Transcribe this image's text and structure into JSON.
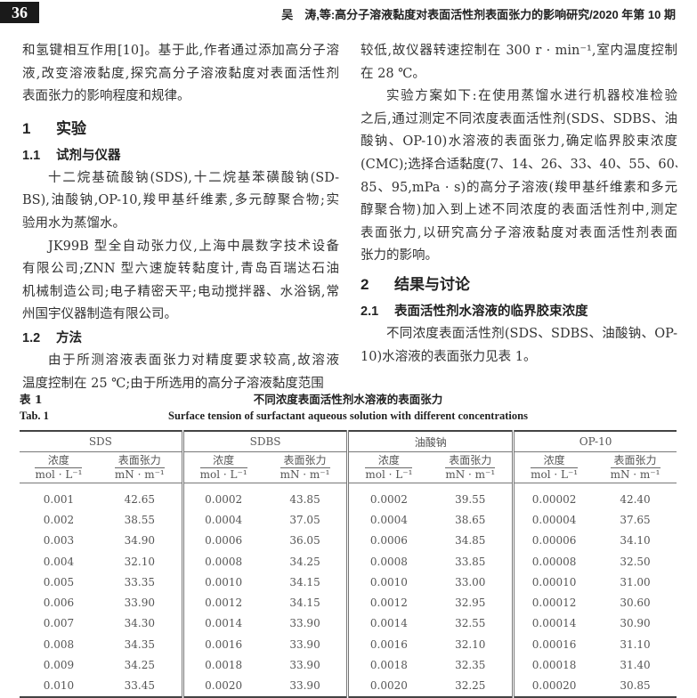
{
  "header": {
    "page_number": "36",
    "running_title": "吴　涛,等:高分子溶液黏度对表面活性剂表面张力的影响研究/2020 年第 10 期"
  },
  "left": {
    "p1": [
      "和氢键相互作用[10]。基于此,作者通过添加高分子溶",
      "液,改变溶液黏度,探究高分子溶液黏度对表面活性剂",
      "表面张力的影响程度和规律。"
    ],
    "s1": {
      "num": "1",
      "title": "实验"
    },
    "s11": {
      "num": "1.1",
      "title": "试剂与仪器"
    },
    "p2": [
      "十二烷基硫酸钠(SDS),十二烷基苯磺酸钠(SD-",
      "BS),油酸钠,OP-10,羧甲基纤维素,多元醇聚合物;实",
      "验用水为蒸馏水。"
    ],
    "p3": [
      "JK99B 型全自动张力仪,上海中晨数字技术设备",
      "有限公司;ZNN 型六速旋转黏度计,青岛百瑞达石油",
      "机械制造公司;电子精密天平;电动搅拌器、水浴锅,常",
      "州国宇仪器制造有限公司。"
    ],
    "s12": {
      "num": "1.2",
      "title": "方法"
    },
    "p4": [
      "由于所测溶液表面张力对精度要求较高,故溶液",
      "温度控制在 25 ℃;由于所选用的高分子溶液黏度范围"
    ]
  },
  "right": {
    "p1": [
      "较低,故仪器转速控制在 300 r · min⁻¹,室内温度控制",
      "在 28 ℃。"
    ],
    "p2": [
      "实验方案如下:在使用蒸馏水进行机器校准检验",
      "之后,通过测定不同浓度表面活性剂(SDS、SDBS、油",
      "酸钠、OP-10)水溶液的表面张力,确定临界胶束浓度",
      "(CMC);选择合适黏度(7、14、26、33、40、55、60、73、",
      "85、95,mPa · s)的高分子溶液(羧甲基纤维素和多元",
      "醇聚合物)加入到上述不同浓度的表面活性剂中,测定",
      "表面张力,以研究高分子溶液黏度对表面活性剂表面",
      "张力的影响。"
    ],
    "s2": {
      "num": "2",
      "title": "结果与讨论"
    },
    "s21": {
      "num": "2.1",
      "title": "表面活性剂水溶液的临界胶束浓度"
    },
    "p3": [
      "不同浓度表面活性剂(SDS、SDBS、油酸钠、OP-",
      "10)水溶液的表面张力见表 1。"
    ]
  },
  "table": {
    "label_cn": "表 1",
    "title_cn": "不同浓度表面活性剂水溶液的表面张力",
    "label_en": "Tab. 1",
    "title_en": "Surface tension of surfactant aqueous solution with different concentrations",
    "groups": [
      "SDS",
      "SDBS",
      "油酸钠",
      "OP-10"
    ],
    "col_conc": "浓度",
    "unit_conc": "mol · L⁻¹",
    "col_st": "表面张力",
    "unit_st": "mN · m⁻¹",
    "rows": [
      [
        "0.001",
        "42.65",
        "0.0002",
        "43.85",
        "0.0002",
        "39.55",
        "0.00002",
        "42.40"
      ],
      [
        "0.002",
        "38.55",
        "0.0004",
        "37.05",
        "0.0004",
        "38.65",
        "0.00004",
        "37.65"
      ],
      [
        "0.003",
        "34.90",
        "0.0006",
        "36.05",
        "0.0006",
        "34.85",
        "0.00006",
        "34.10"
      ],
      [
        "0.004",
        "32.10",
        "0.0008",
        "34.25",
        "0.0008",
        "33.85",
        "0.00008",
        "32.50"
      ],
      [
        "0.005",
        "33.35",
        "0.0010",
        "34.15",
        "0.0010",
        "33.00",
        "0.00010",
        "31.00"
      ],
      [
        "0.006",
        "33.90",
        "0.0012",
        "34.15",
        "0.0012",
        "32.95",
        "0.00012",
        "30.60"
      ],
      [
        "0.007",
        "34.30",
        "0.0014",
        "33.90",
        "0.0014",
        "32.55",
        "0.00014",
        "30.90"
      ],
      [
        "0.008",
        "34.35",
        "0.0016",
        "33.90",
        "0.0016",
        "32.10",
        "0.00016",
        "31.10"
      ],
      [
        "0.009",
        "34.25",
        "0.0018",
        "33.90",
        "0.0018",
        "32.35",
        "0.00018",
        "31.40"
      ],
      [
        "0.010",
        "33.45",
        "0.0020",
        "33.90",
        "0.0020",
        "32.25",
        "0.00020",
        "30.85"
      ]
    ]
  }
}
